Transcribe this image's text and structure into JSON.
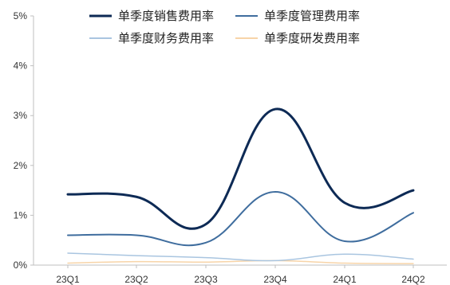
{
  "chart_data": {
    "type": "line",
    "categories": [
      "23Q1",
      "23Q2",
      "23Q3",
      "23Q4",
      "24Q1",
      "24Q2"
    ],
    "ylim": [
      0,
      5
    ],
    "yticks": [
      "0%",
      "1%",
      "2%",
      "3%",
      "4%",
      "5%"
    ],
    "grid": false,
    "legend_position": "top",
    "series": [
      {
        "name": "单季度销售费用率",
        "color": "#0d2a55",
        "width": 3,
        "values": [
          1.42,
          1.37,
          0.82,
          3.13,
          1.25,
          1.5
        ]
      },
      {
        "name": "单季度管理费用率",
        "color": "#3f6d9e",
        "width": 2,
        "values": [
          0.6,
          0.6,
          0.45,
          1.47,
          0.48,
          1.05
        ]
      },
      {
        "name": "单季度财务费用率",
        "color": "#a9c5e0",
        "width": 1.5,
        "values": [
          0.24,
          0.19,
          0.15,
          0.09,
          0.22,
          0.12
        ]
      },
      {
        "name": "单季度研发费用率",
        "color": "#f7d4a8",
        "width": 1.5,
        "values": [
          0.04,
          0.07,
          0.06,
          0.09,
          0.04,
          0.03
        ]
      }
    ]
  }
}
